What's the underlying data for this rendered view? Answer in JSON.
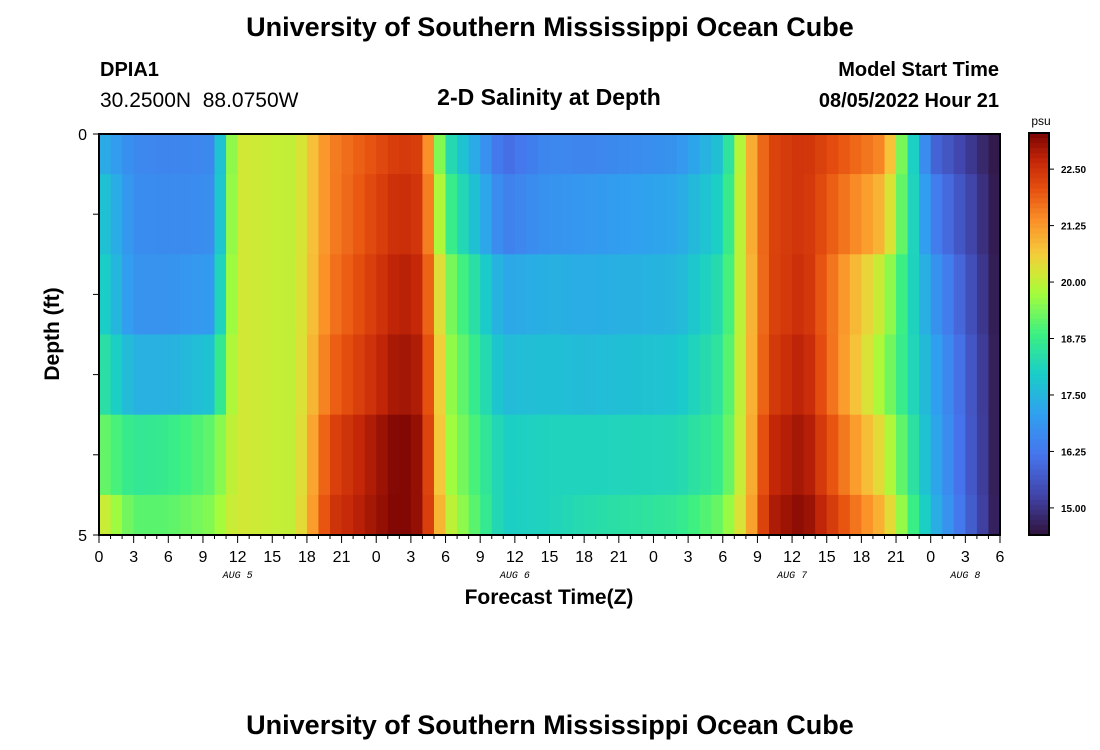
{
  "page": {
    "title": "University of Southern Mississippi Ocean Cube",
    "footer_title": "University of Southern Mississippi Ocean Cube"
  },
  "header": {
    "station_id": "DPIA1",
    "station_coords": "30.2500N  88.0750W",
    "plot_title": "2-D Salinity at Depth",
    "model_start_label": "Model Start Time",
    "model_start_value": "08/05/2022 Hour 21"
  },
  "chart_data": {
    "type": "heatmap",
    "title": "2-D Salinity at Depth",
    "xlabel": "Forecast Time(Z)",
    "ylabel": "Depth (ft)",
    "colorbar_unit": "psu",
    "hours_per_column": 1,
    "x_start_hour_aug5": 0,
    "x_tick_labels": [
      "0",
      "3",
      "6",
      "9",
      "12",
      "15",
      "18",
      "21",
      "0",
      "3",
      "6",
      "9",
      "12",
      "15",
      "18",
      "21",
      "0",
      "3",
      "6",
      "9",
      "12",
      "15",
      "18",
      "21",
      "0",
      "3",
      "6"
    ],
    "date_labels": [
      {
        "label": "AUG 5",
        "hour": 12
      },
      {
        "label": "AUG 6",
        "hour": 36
      },
      {
        "label": "AUG 7",
        "hour": 60
      },
      {
        "label": "AUG 8",
        "hour": 75
      }
    ],
    "y_tick_labels": [
      "0",
      "5"
    ],
    "y_range": [
      0,
      5
    ],
    "colorbar_ticks": [
      "15.00",
      "16.25",
      "17.50",
      "18.75",
      "20.00",
      "21.25",
      "22.50"
    ],
    "color_range": [
      14.4,
      23.3
    ],
    "colormap": "turbo",
    "depth_bands": [
      {
        "depth_ft": [
          0.0,
          0.5
        ],
        "key_hours": [
          0,
          3,
          6,
          10,
          11,
          12,
          17,
          20,
          26,
          28,
          30,
          35,
          39,
          42,
          50,
          54,
          56,
          58,
          61,
          68,
          72,
          78
        ],
        "key_values": [
          17.4,
          16.6,
          16.5,
          16.6,
          18.9,
          20.2,
          20.0,
          21.5,
          22.4,
          22.3,
          18.5,
          16.0,
          16.6,
          16.5,
          16.8,
          17.8,
          20.6,
          22.2,
          22.5,
          21.4,
          16.0,
          14.4
        ]
      },
      {
        "depth_ft": [
          0.5,
          1.5
        ],
        "key_hours": [
          0,
          3,
          6,
          10,
          11,
          12,
          17,
          20,
          26,
          28,
          30,
          35,
          39,
          42,
          50,
          54,
          56,
          58,
          61,
          68,
          72,
          78
        ],
        "key_values": [
          17.9,
          16.7,
          16.6,
          16.7,
          19.0,
          20.2,
          20.0,
          21.5,
          22.6,
          22.4,
          19.0,
          16.4,
          16.8,
          16.9,
          17.2,
          18.1,
          20.6,
          22.2,
          22.5,
          20.8,
          16.5,
          14.4
        ]
      },
      {
        "depth_ft": [
          1.5,
          2.5
        ],
        "key_hours": [
          0,
          3,
          6,
          10,
          11,
          12,
          17,
          20,
          26,
          28,
          30,
          35,
          39,
          42,
          50,
          54,
          56,
          58,
          61,
          68,
          72,
          78
        ],
        "key_values": [
          18.2,
          16.8,
          16.8,
          17.0,
          19.2,
          20.2,
          20.0,
          21.6,
          22.8,
          22.6,
          19.6,
          17.2,
          17.4,
          17.3,
          17.5,
          18.4,
          20.5,
          22.2,
          22.6,
          19.9,
          17.0,
          14.4
        ]
      },
      {
        "depth_ft": [
          2.5,
          3.5
        ],
        "key_hours": [
          0,
          3,
          6,
          10,
          11,
          12,
          17,
          20,
          26,
          28,
          30,
          35,
          39,
          42,
          50,
          54,
          56,
          58,
          61,
          68,
          72,
          78
        ],
        "key_values": [
          18.6,
          17.4,
          17.4,
          17.8,
          19.5,
          20.2,
          20.0,
          21.8,
          23.0,
          22.8,
          19.8,
          17.6,
          17.7,
          17.6,
          17.8,
          18.6,
          20.5,
          22.3,
          22.8,
          19.6,
          17.3,
          14.4
        ]
      },
      {
        "depth_ft": [
          3.5,
          4.5
        ],
        "key_hours": [
          0,
          3,
          6,
          10,
          11,
          12,
          17,
          20,
          26,
          28,
          30,
          35,
          39,
          42,
          50,
          54,
          56,
          58,
          61,
          68,
          72,
          78
        ],
        "key_values": [
          19.3,
          18.6,
          18.7,
          19.2,
          19.8,
          20.2,
          20.0,
          22.2,
          23.3,
          23.0,
          19.9,
          18.0,
          18.1,
          18.1,
          18.2,
          18.8,
          20.5,
          22.6,
          23.0,
          20.2,
          17.4,
          14.4
        ]
      },
      {
        "depth_ft": [
          4.5,
          5.0
        ],
        "key_hours": [
          0,
          3,
          6,
          10,
          11,
          12,
          17,
          20,
          26,
          28,
          30,
          35,
          39,
          42,
          50,
          54,
          56,
          58,
          61,
          68,
          72,
          78
        ],
        "key_values": [
          20.3,
          19.1,
          19.1,
          19.5,
          20.0,
          20.2,
          20.0,
          22.4,
          23.3,
          23.0,
          20.2,
          18.0,
          18.1,
          18.3,
          18.6,
          19.3,
          20.6,
          22.8,
          23.2,
          20.8,
          17.6,
          14.4
        ]
      }
    ]
  }
}
